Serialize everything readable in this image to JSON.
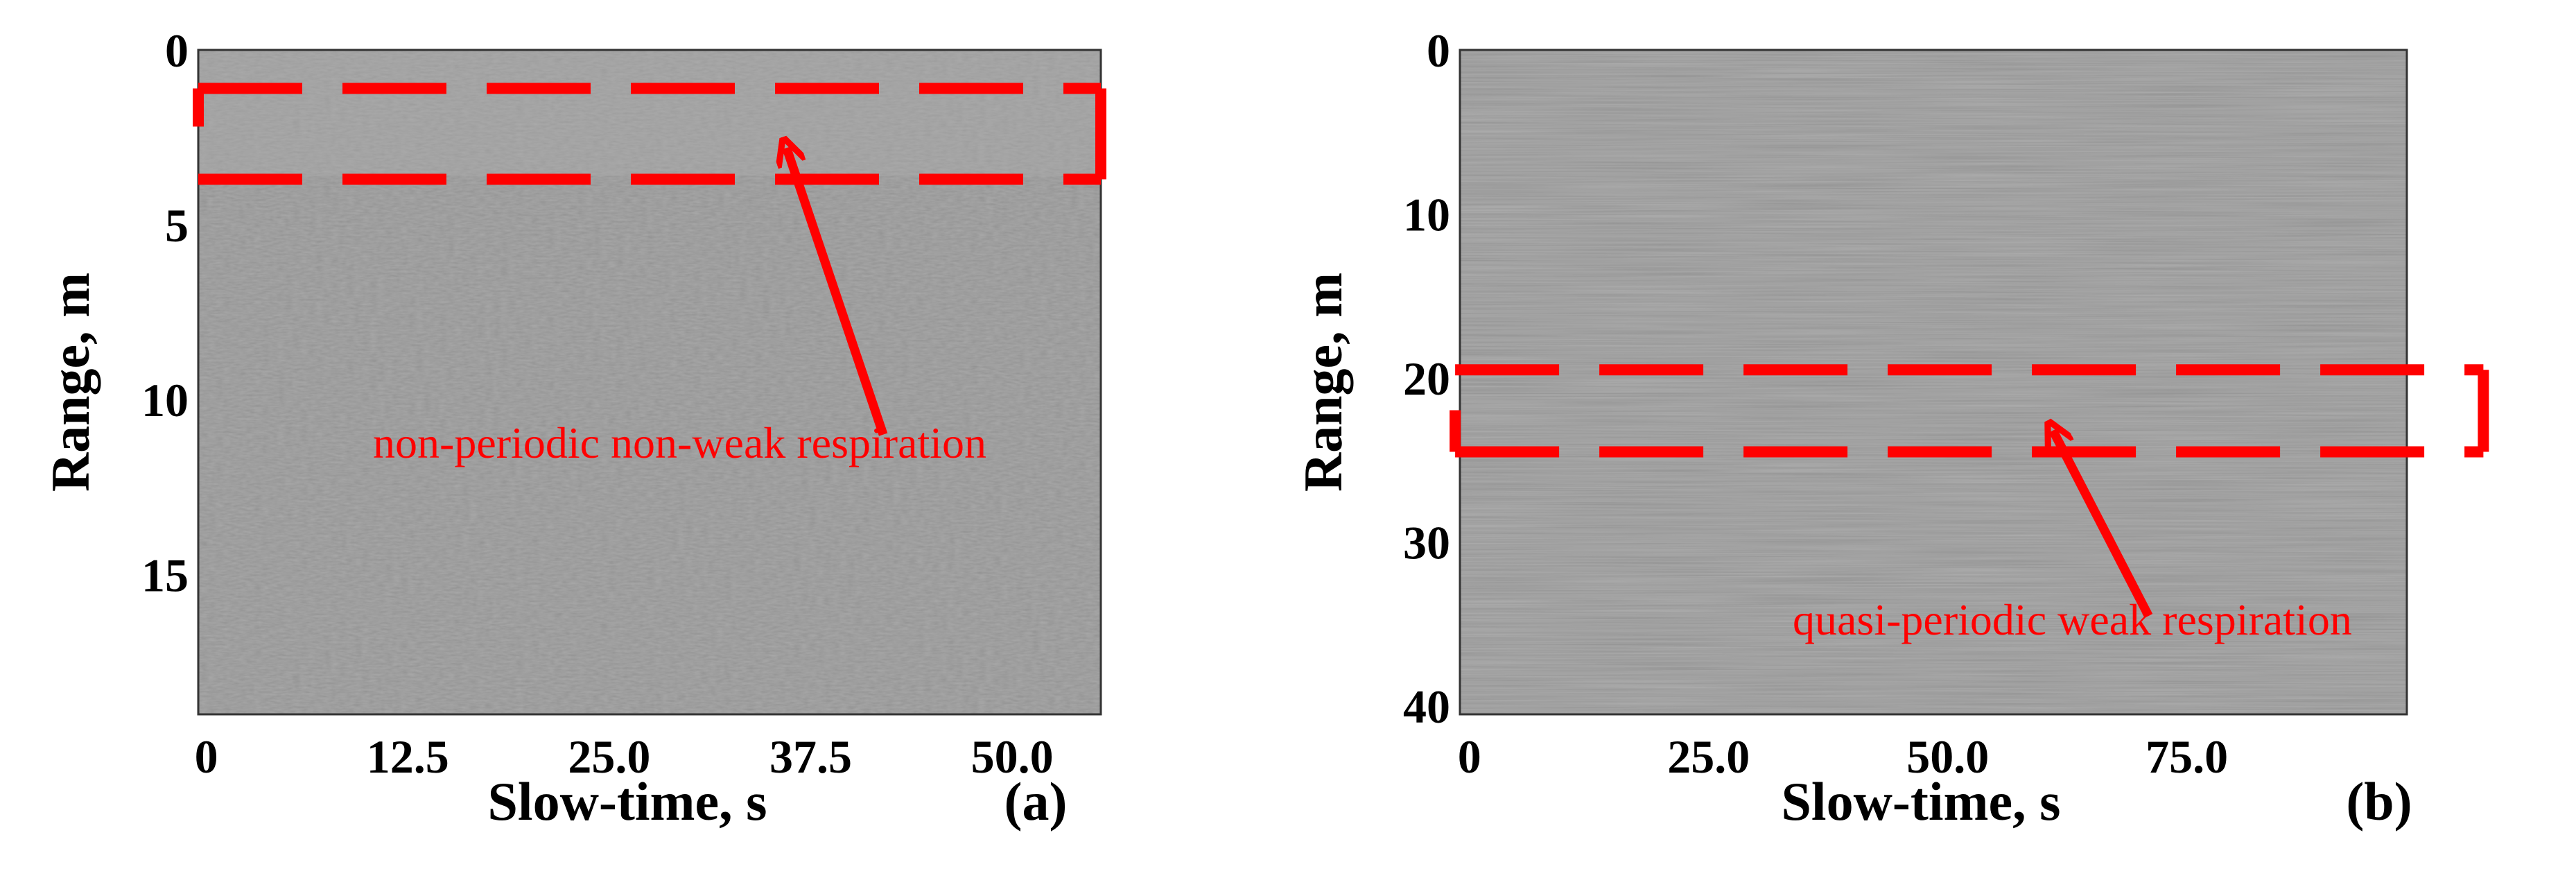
{
  "colors": {
    "annotation": "#ff0000",
    "background": "#ffffff",
    "plot_gray": "#8a8a8a"
  },
  "chart_data": [
    {
      "type": "heatmap",
      "panel_label": "(a)",
      "xlabel": "Slow-time, s",
      "ylabel": "Range, m",
      "xticks": [
        "0",
        "12.5",
        "25.0",
        "37.5",
        "50.0"
      ],
      "xtick_values": [
        0,
        12.5,
        25,
        37.5,
        50
      ],
      "yticks": [
        "0",
        "5",
        "10",
        "15"
      ],
      "ytick_values": [
        0,
        5,
        10,
        15
      ],
      "xlim": [
        -0.5,
        55.5
      ],
      "ylim": [
        0,
        19
      ],
      "y_inverted": true,
      "highlight_box": {
        "x": [
          -0.5,
          55.5
        ],
        "y": [
          1.1,
          3.7
        ]
      },
      "annotation": {
        "text": "non-periodic non-weak respiration",
        "arrow_from": [
          42,
          11
        ],
        "arrow_to": [
          36,
          2.8
        ]
      }
    },
    {
      "type": "heatmap",
      "panel_label": "(b)",
      "xlabel": "Slow-time, s",
      "ylabel": "Range, m",
      "xticks": [
        "0",
        "25.0",
        "50.0",
        "75.0"
      ],
      "xtick_values": [
        0,
        25,
        50,
        75
      ],
      "yticks": [
        "0",
        "10",
        "20",
        "30",
        "40"
      ],
      "ytick_values": [
        0,
        10,
        20,
        30,
        40
      ],
      "xlim": [
        -1,
        98
      ],
      "ylim": [
        0,
        40.5
      ],
      "y_inverted": true,
      "highlight_box": {
        "x": [
          -1.5,
          106
        ],
        "y": [
          19.5,
          24.5
        ]
      },
      "annotation": {
        "text": "quasi-periodic weak respiration",
        "arrow_from": [
          71,
          34.5
        ],
        "arrow_to": [
          61,
          23.2
        ]
      }
    }
  ]
}
